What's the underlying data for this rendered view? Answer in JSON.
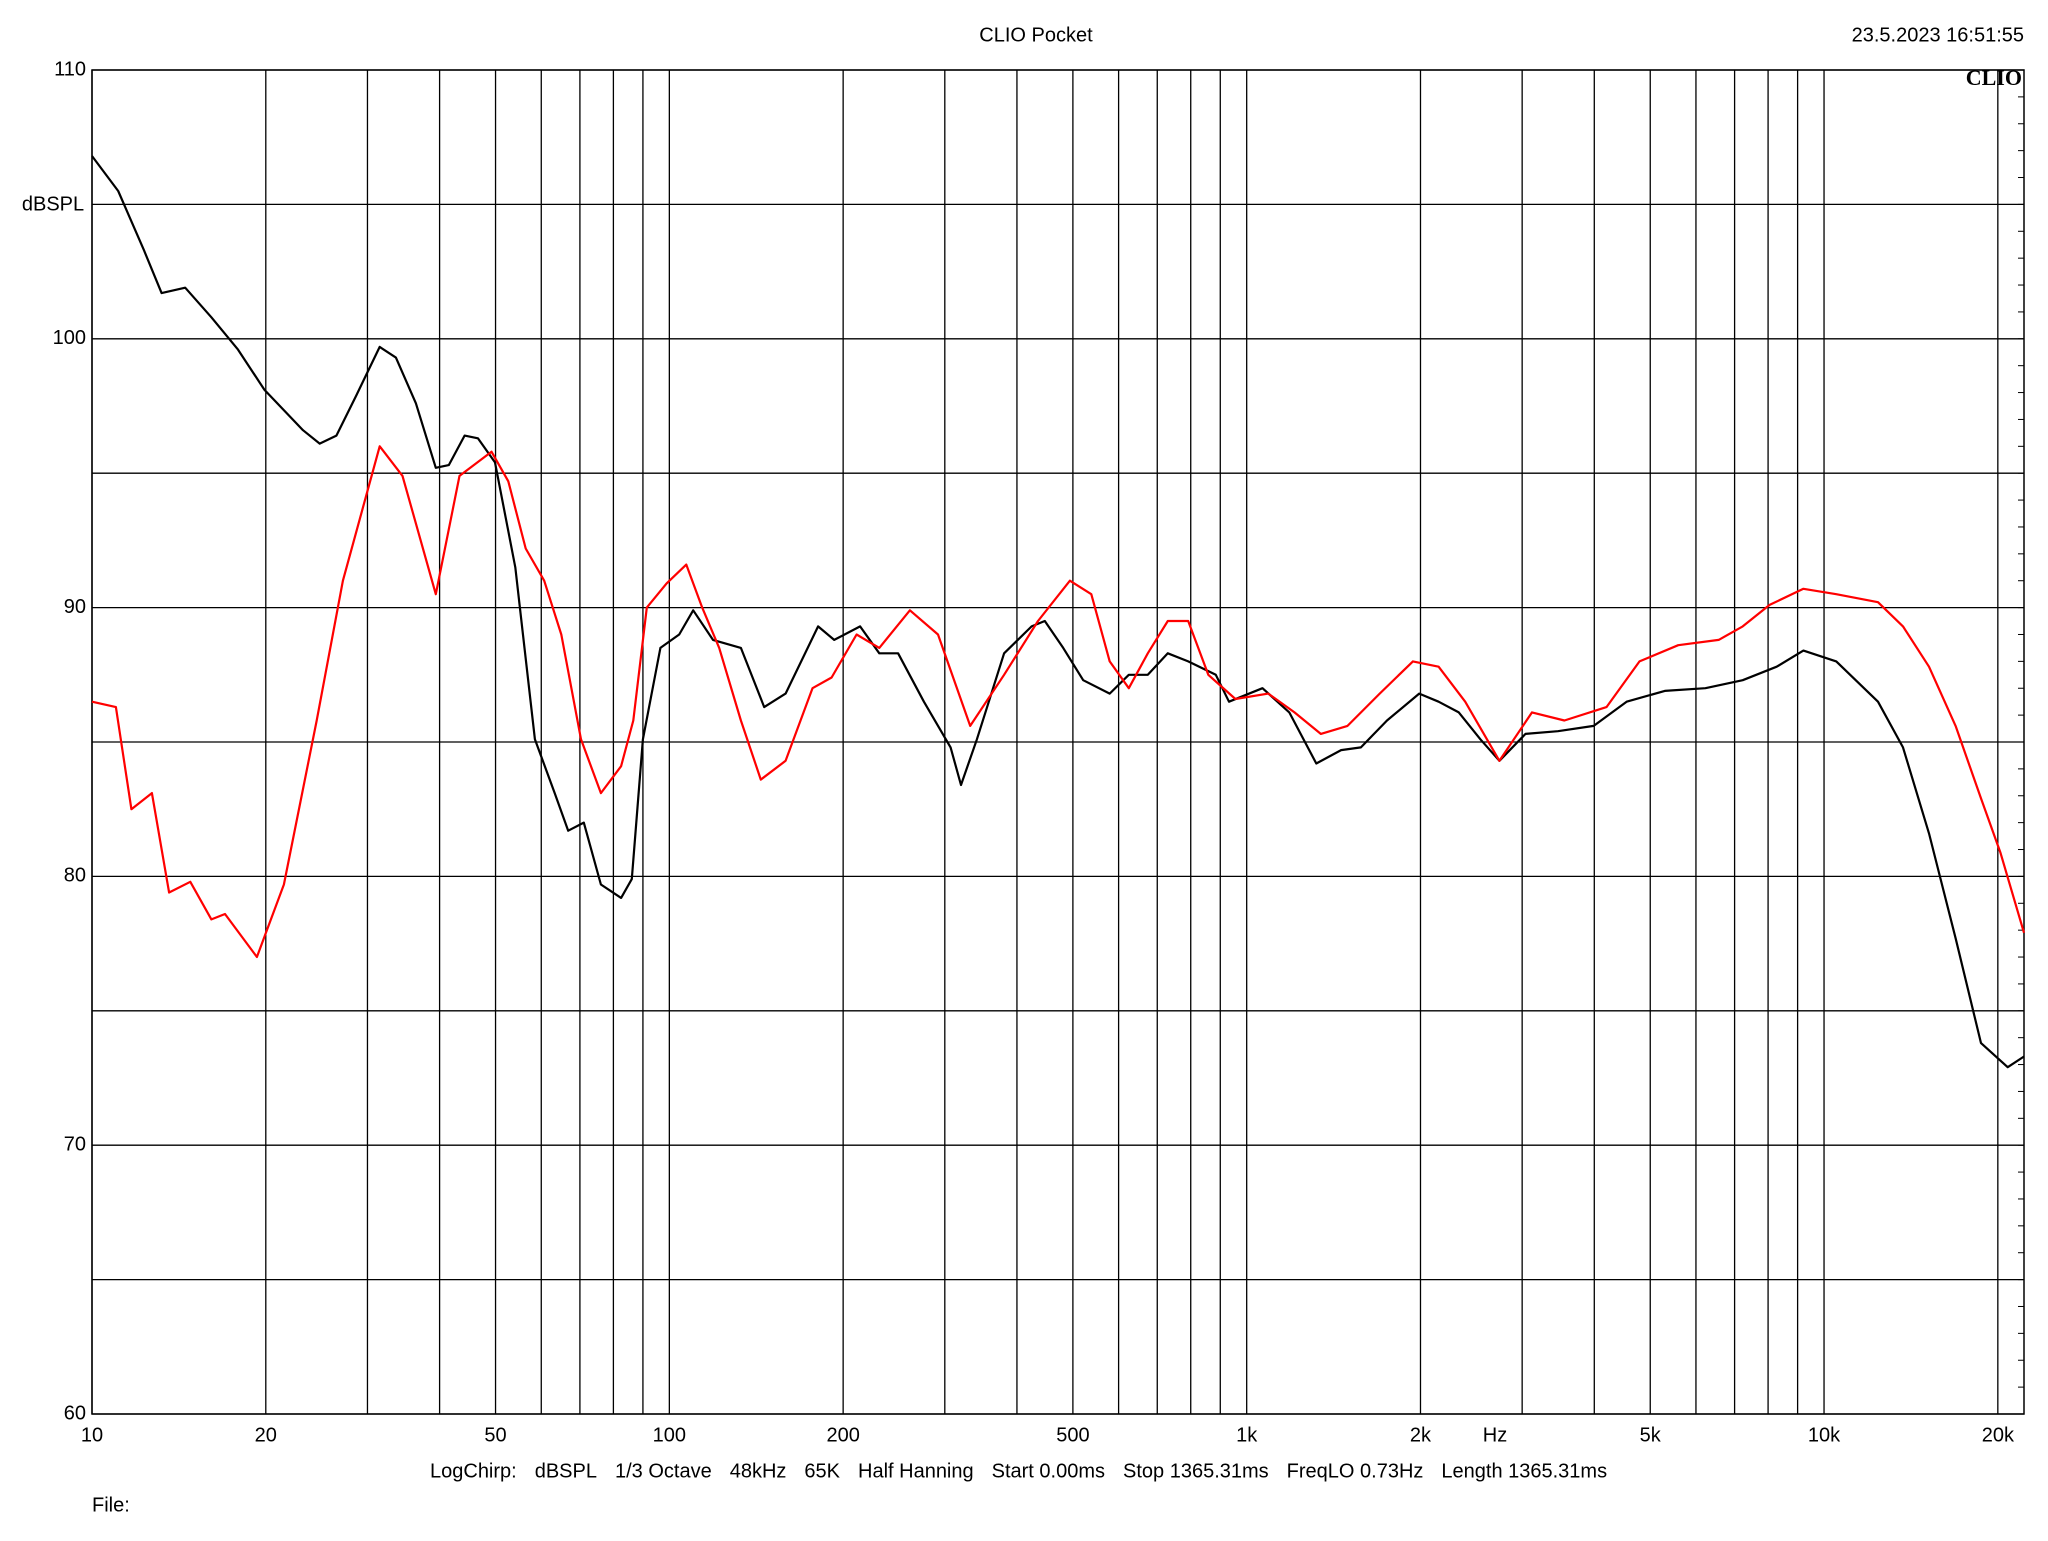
{
  "chart_data": {
    "type": "line",
    "title": "CLIO Pocket",
    "timestamp": "23.5.2023 16:51:55",
    "logo": "CLIO",
    "y_label": "dBSPL",
    "x_unit_label": "Hz",
    "footer": [
      "LogChirp:",
      "dBSPL",
      "1/3 Octave",
      "48kHz",
      "65K",
      "Half Hanning",
      "Start 0.00ms",
      "Stop 1365.31ms",
      "FreqLO 0.73Hz",
      "Length 1365.31ms"
    ],
    "file_label": "File:",
    "x_log": true,
    "xlim": [
      10,
      22200
    ],
    "xticks": [
      10,
      20,
      50,
      100,
      200,
      500,
      {
        "value": 1000,
        "label": "1k"
      },
      {
        "value": 2000,
        "label": "2k"
      },
      {
        "value": 5000,
        "label": "5k"
      },
      {
        "value": 10000,
        "label": "10k"
      },
      {
        "value": 20000,
        "label": "20k"
      }
    ],
    "x_minor_grid": [
      30,
      40,
      60,
      70,
      80,
      90,
      300,
      400,
      600,
      700,
      800,
      900,
      3000,
      4000,
      6000,
      7000,
      8000,
      9000
    ],
    "ylim": [
      60,
      110
    ],
    "yticks": [
      60,
      70,
      80,
      90,
      100,
      110
    ],
    "y_minor_grid": [
      65,
      75,
      85,
      95,
      105
    ],
    "grid": true,
    "series": [
      {
        "name": "black",
        "color": "#000000",
        "x": [
          10,
          11.1,
          12.3,
          13.2,
          14.5,
          16.1,
          17.9,
          19.9,
          23.2,
          24.8,
          26.5,
          28.7,
          31.5,
          33.6,
          36.4,
          39.4,
          41.5,
          44.2,
          46.6,
          49.9,
          54.1,
          58.5,
          63.3,
          66.8,
          71.1,
          76.1,
          82.5,
          86.1,
          90,
          96.5,
          104,
          110,
          119,
          133,
          146,
          159,
          181,
          193,
          214,
          231,
          249,
          276,
          307,
          320,
          341,
          380,
          424,
          447,
          481,
          521,
          579,
          625,
          674,
          730,
          792,
          884,
          932,
          1065,
          1185,
          1320,
          1457,
          1577,
          1750,
          1990,
          2150,
          2330,
          2540,
          2740,
          3040,
          3460,
          3990,
          4550,
          5300,
          6230,
          7230,
          8280,
          9210,
          10500,
          12400,
          13700,
          15200,
          16900,
          18700,
          20800,
          22200
        ],
        "values": [
          106.8,
          105.5,
          103.3,
          101.7,
          101.9,
          100.8,
          99.6,
          98.1,
          96.6,
          96.1,
          96.4,
          97.9,
          99.7,
          99.3,
          97.6,
          95.2,
          95.3,
          96.4,
          96.3,
          95.4,
          91.5,
          85.1,
          83.1,
          81.7,
          82.0,
          79.7,
          79.2,
          79.9,
          85.1,
          88.5,
          89.0,
          89.9,
          88.8,
          88.5,
          86.3,
          86.8,
          89.3,
          88.8,
          89.3,
          88.3,
          88.3,
          86.5,
          84.8,
          83.4,
          85.1,
          88.3,
          89.3,
          89.5,
          88.5,
          87.3,
          86.8,
          87.5,
          87.5,
          88.3,
          88.0,
          87.5,
          86.5,
          87.0,
          86.1,
          84.2,
          84.7,
          84.8,
          85.8,
          86.8,
          86.5,
          86.1,
          85.1,
          84.3,
          85.3,
          85.4,
          85.6,
          86.5,
          86.9,
          87.0,
          87.3,
          87.8,
          88.4,
          88.0,
          86.5,
          84.8,
          81.6,
          77.7,
          73.8,
          72.9,
          73.3
        ]
      },
      {
        "name": "red",
        "color": "#ff0000",
        "x": [
          10,
          11.0,
          11.7,
          12.7,
          13.6,
          14.8,
          16.1,
          17.0,
          19.3,
          21.5,
          24.5,
          27.2,
          31.5,
          34.5,
          39.4,
          43.3,
          49.2,
          52.6,
          56.4,
          60.7,
          65.0,
          70.3,
          76.1,
          82.5,
          86.6,
          91.4,
          98.9,
          107,
          114,
          122,
          133,
          144,
          159,
          177,
          191,
          211,
          231,
          261,
          292,
          332,
          380,
          435,
          494,
          538,
          579,
          625,
          674,
          730,
          792,
          858,
          956,
          1090,
          1210,
          1344,
          1495,
          1700,
          1940,
          2150,
          2390,
          2740,
          3120,
          3550,
          4200,
          4790,
          5590,
          6570,
          7230,
          8050,
          9210,
          10500,
          12400,
          13700,
          15200,
          16900,
          18700,
          20200,
          22200
        ],
        "values": [
          86.5,
          86.3,
          82.5,
          83.1,
          79.4,
          79.8,
          78.4,
          78.6,
          77.0,
          79.7,
          85.8,
          91.0,
          96.0,
          94.9,
          90.5,
          94.9,
          95.8,
          94.7,
          92.2,
          91.0,
          89.0,
          85.1,
          83.1,
          84.1,
          85.8,
          90.0,
          90.9,
          91.6,
          90.0,
          88.5,
          85.8,
          83.6,
          84.3,
          87.0,
          87.4,
          89.0,
          88.5,
          89.9,
          89.0,
          85.6,
          87.5,
          89.5,
          91.0,
          90.5,
          88.0,
          87.0,
          88.3,
          89.5,
          89.5,
          87.5,
          86.6,
          86.8,
          86.1,
          85.3,
          85.6,
          86.8,
          88.0,
          87.8,
          86.5,
          84.3,
          86.1,
          85.8,
          86.3,
          88.0,
          88.6,
          88.8,
          89.3,
          90.1,
          90.7,
          90.5,
          90.2,
          89.3,
          87.8,
          85.6,
          82.9,
          80.9,
          77.9
        ]
      }
    ]
  }
}
